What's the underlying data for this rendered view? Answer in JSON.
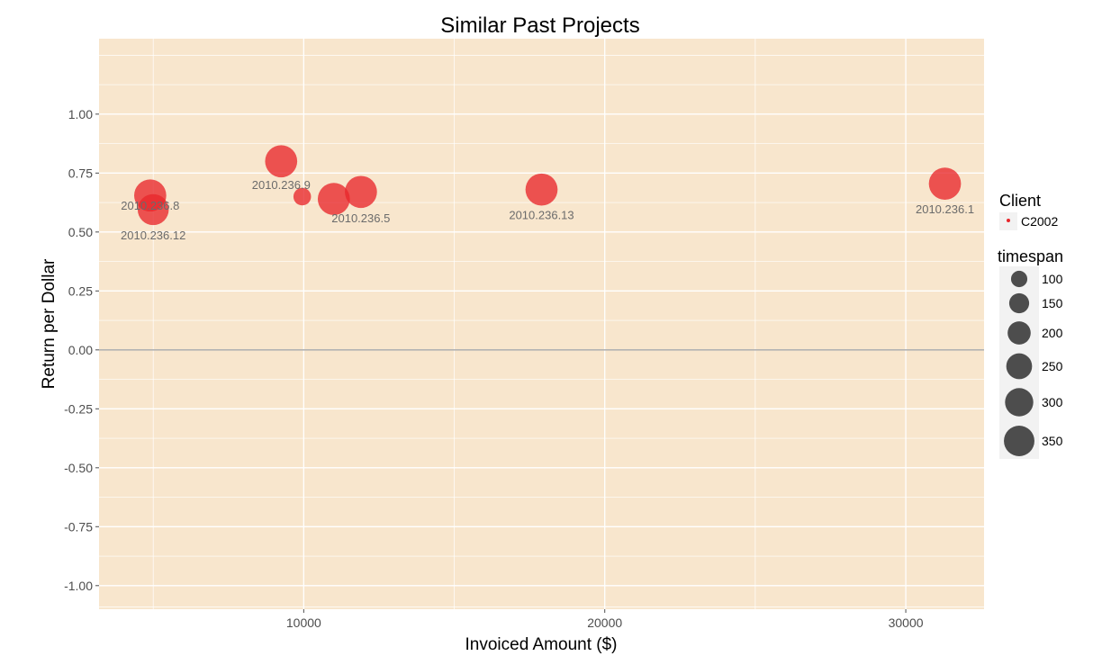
{
  "chart_data": {
    "type": "scatter",
    "title": "Similar Past Projects",
    "xlabel": "Invoiced Amount ($)",
    "ylabel": "Return per Dollar",
    "xlim": [
      3200,
      32600
    ],
    "ylim": [
      -1.1,
      1.32
    ],
    "x_ticks": [
      10000,
      20000,
      30000
    ],
    "x_minor": [
      5000,
      15000,
      25000
    ],
    "y_ticks": [
      -1.0,
      -0.75,
      -0.5,
      -0.25,
      0.0,
      0.25,
      0.5,
      0.75,
      1.0
    ],
    "y_tick_labels": [
      "-1.00",
      "-0.75",
      "-0.50",
      "-0.25",
      "0.00",
      "0.25",
      "0.50",
      "0.75",
      "1.00"
    ],
    "hline": 0.0,
    "panel_background": "#f8e6cd",
    "point_color": "#e8262b",
    "grid": true,
    "points": [
      {
        "x": 4900,
        "y": 0.655,
        "timespan": 300,
        "label": "2010.236.8"
      },
      {
        "x": 5000,
        "y": 0.595,
        "timespan": 280,
        "label": "2010.236.12"
      },
      {
        "x": 9250,
        "y": 0.8,
        "timespan": 300,
        "label": "2010.236.9"
      },
      {
        "x": 9950,
        "y": 0.65,
        "timespan": 90,
        "label": ""
      },
      {
        "x": 11000,
        "y": 0.64,
        "timespan": 300,
        "label": "2010.236.5"
      },
      {
        "x": 11900,
        "y": 0.67,
        "timespan": 300,
        "label": ""
      },
      {
        "x": 17900,
        "y": 0.68,
        "timespan": 300,
        "label": "2010.236.13"
      },
      {
        "x": 31300,
        "y": 0.705,
        "timespan": 300,
        "label": "2010.236.1"
      }
    ],
    "legend": {
      "position": "right",
      "client_title": "Client",
      "client_entries": [
        "C2002"
      ],
      "size_title": "timespan",
      "size_entries": [
        100,
        150,
        200,
        250,
        300,
        350
      ]
    }
  }
}
